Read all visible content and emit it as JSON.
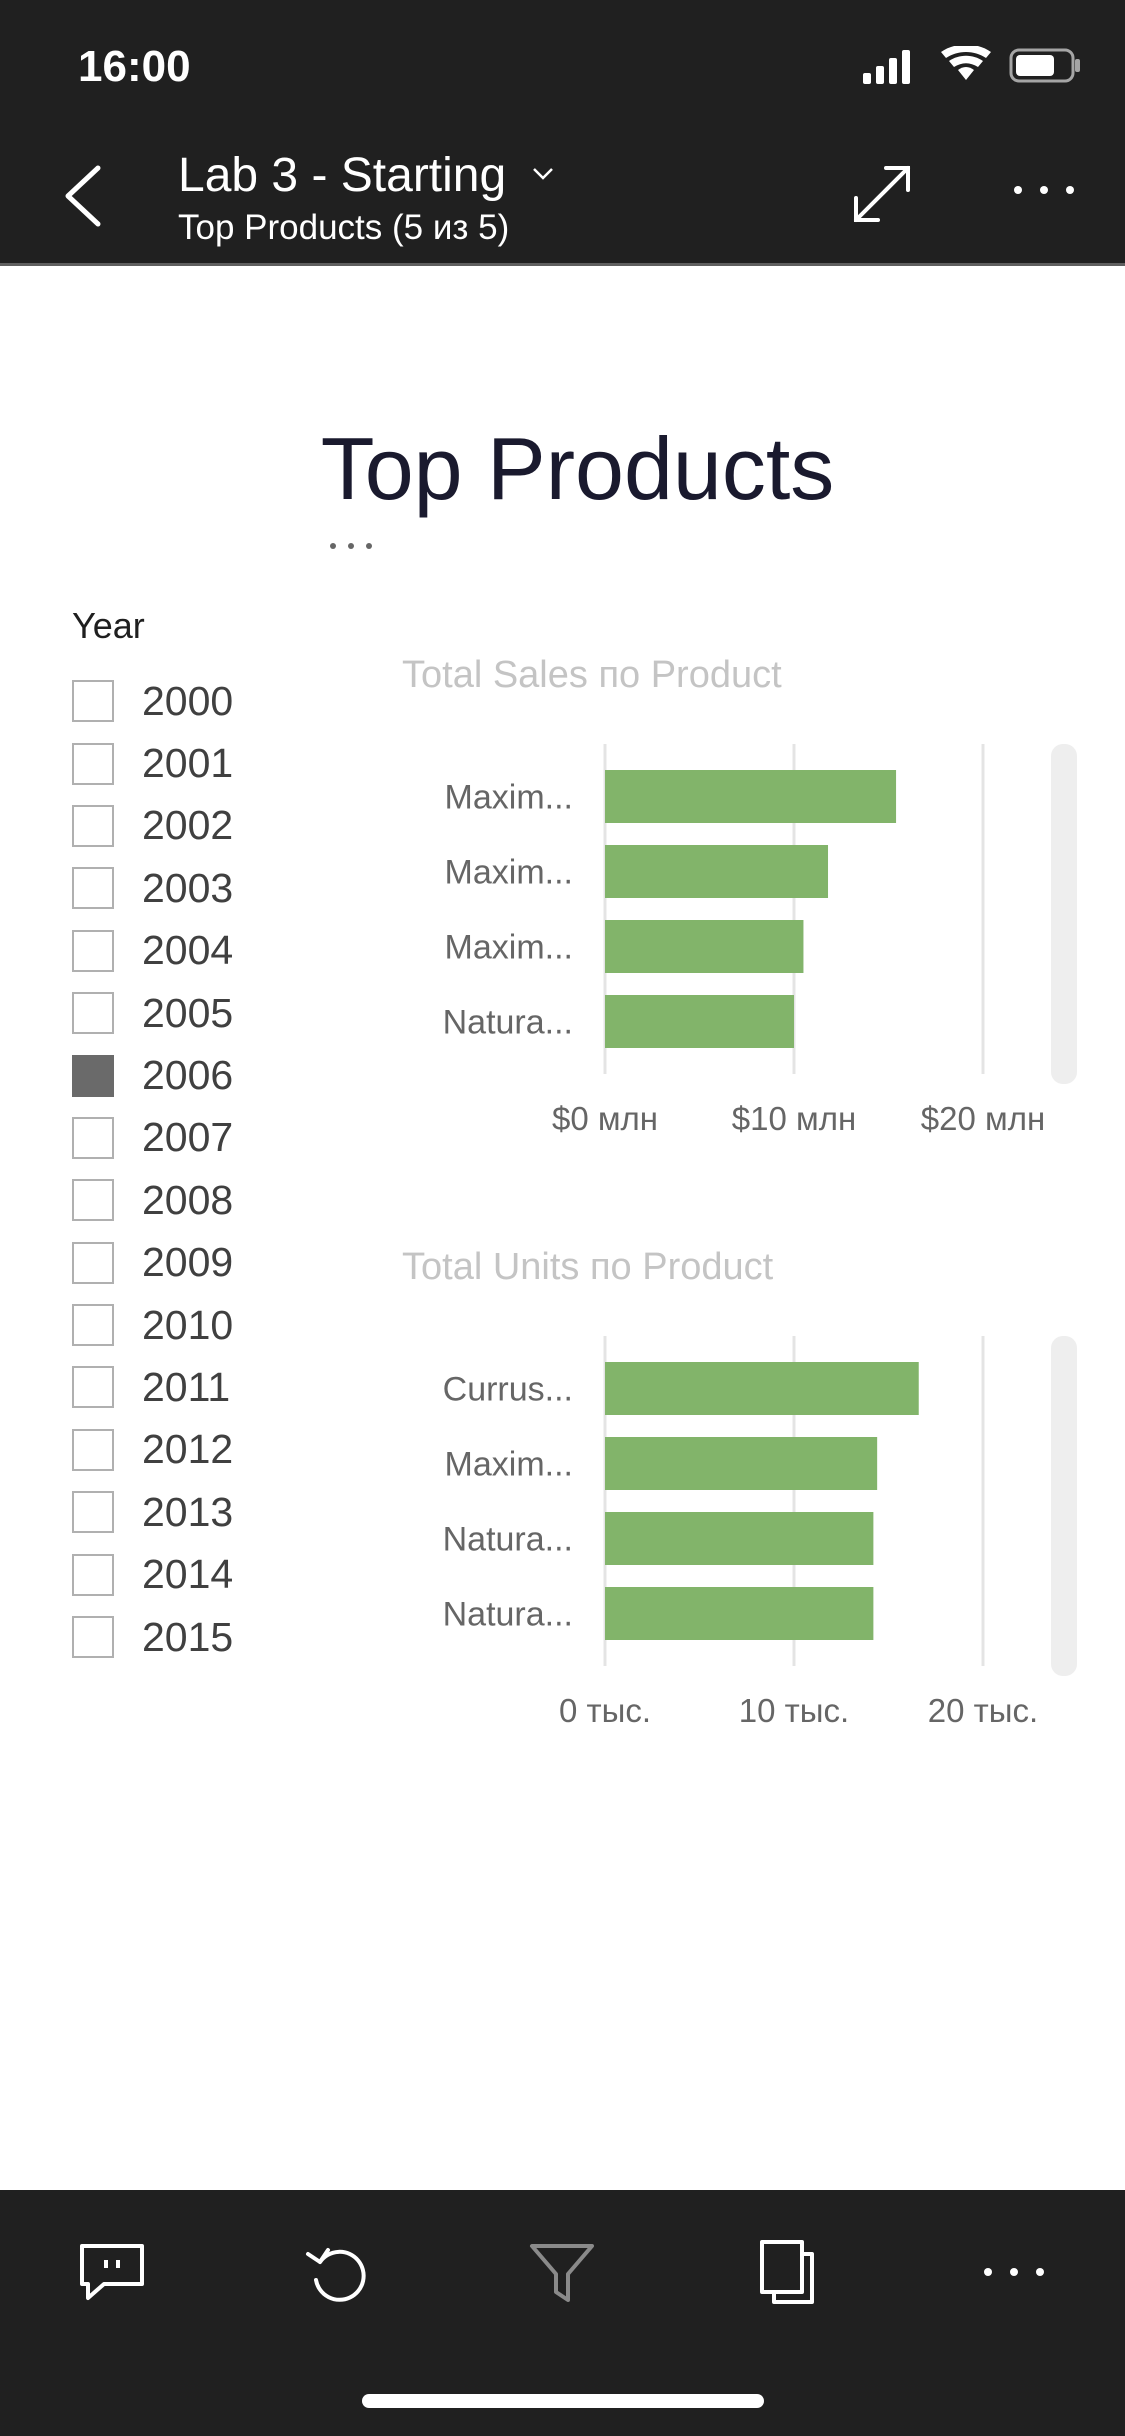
{
  "status_bar": {
    "time": "16:00",
    "signal_icon": "cellular-signal-icon",
    "wifi_icon": "wifi-icon",
    "battery_icon": "battery-icon"
  },
  "header": {
    "report_title": "Lab 3 - Starting",
    "page_subtitle": "Top Products  (5 из 5)",
    "back_icon": "chevron-left-icon",
    "caret_icon": "chevron-down-icon",
    "expand_icon": "expand-icon",
    "more_icon": "more-icon"
  },
  "page": {
    "title": "Top Products"
  },
  "slicer": {
    "header": "Year",
    "items": [
      {
        "label": "2000",
        "checked": false
      },
      {
        "label": "2001",
        "checked": false
      },
      {
        "label": "2002",
        "checked": false
      },
      {
        "label": "2003",
        "checked": false
      },
      {
        "label": "2004",
        "checked": false
      },
      {
        "label": "2005",
        "checked": false
      },
      {
        "label": "2006",
        "checked": true
      },
      {
        "label": "2007",
        "checked": false
      },
      {
        "label": "2008",
        "checked": false
      },
      {
        "label": "2009",
        "checked": false
      },
      {
        "label": "2010",
        "checked": false
      },
      {
        "label": "2011",
        "checked": false
      },
      {
        "label": "2012",
        "checked": false
      },
      {
        "label": "2013",
        "checked": false
      },
      {
        "label": "2014",
        "checked": false
      },
      {
        "label": "2015",
        "checked": false
      }
    ]
  },
  "colors": {
    "bar": "#82b46a",
    "grid": "#e4e4e4",
    "axis_text": "#666666",
    "scrollbar": "#eeeeee",
    "header_bg": "#202020"
  },
  "chart_data": [
    {
      "type": "bar",
      "orientation": "horizontal",
      "title": "Total Sales по Product",
      "categories": [
        "Maxim...",
        "Maxim...",
        "Maxim...",
        "Natura..."
      ],
      "values": [
        15.4,
        11.8,
        10.5,
        10.0
      ],
      "unit": "млн",
      "xlim": [
        0,
        20
      ],
      "xticks": [
        0,
        10,
        20
      ],
      "xtick_labels": [
        "$0 млн",
        "$10 млн",
        "$20 млн"
      ],
      "grid": true
    },
    {
      "type": "bar",
      "orientation": "horizontal",
      "title": "Total Units по Product",
      "categories": [
        "Currus...",
        "Maxim...",
        "Natura...",
        "Natura..."
      ],
      "values": [
        16.6,
        14.4,
        14.2,
        14.2
      ],
      "unit": "тыс.",
      "xlim": [
        0,
        20
      ],
      "xticks": [
        0,
        10,
        20
      ],
      "xtick_labels": [
        "0 тыс.",
        "10 тыс.",
        "20 тыс."
      ],
      "grid": true
    }
  ],
  "toolbar": {
    "comment_icon": "comment-icon",
    "reset_icon": "undo-icon",
    "filter_icon": "filter-icon",
    "pages_icon": "pages-icon",
    "more_icon": "more-icon"
  }
}
